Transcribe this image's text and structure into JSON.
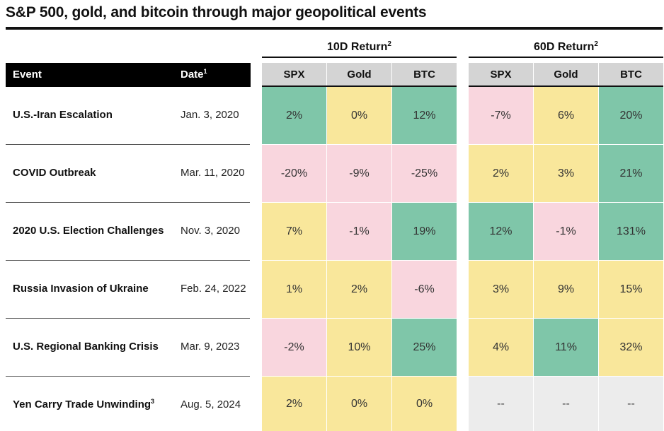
{
  "title": "S&P 500, gold, and bitcoin through major geopolitical events",
  "groups": [
    {
      "label": "10D Return",
      "note": "2"
    },
    {
      "label": "60D Return",
      "note": "2"
    }
  ],
  "header": {
    "event": "Event",
    "date": "Date",
    "date_note": "1"
  },
  "columns": [
    "SPX",
    "Gold",
    "BTC",
    "SPX",
    "Gold",
    "BTC"
  ],
  "colors": {
    "green": "#7fc6a9",
    "yellow": "#f9e79b",
    "pink": "#f9d6de",
    "gray": "#ececec"
  },
  "rows": [
    {
      "event": "U.S.-Iran Escalation",
      "note": "",
      "date": "Jan. 3, 2020",
      "values": [
        "2%",
        "0%",
        "12%",
        "-7%",
        "6%",
        "20%"
      ],
      "colors": [
        "green",
        "yellow",
        "green",
        "pink",
        "yellow",
        "green"
      ]
    },
    {
      "event": "COVID Outbreak",
      "note": "",
      "date": "Mar. 11, 2020",
      "values": [
        "-20%",
        "-9%",
        "-25%",
        "2%",
        "3%",
        "21%"
      ],
      "colors": [
        "pink",
        "pink",
        "pink",
        "yellow",
        "yellow",
        "green"
      ]
    },
    {
      "event": "2020 U.S. Election Challenges",
      "note": "",
      "date": "Nov. 3, 2020",
      "values": [
        "7%",
        "-1%",
        "19%",
        "12%",
        "-1%",
        "131%"
      ],
      "colors": [
        "yellow",
        "pink",
        "green",
        "green",
        "pink",
        "green"
      ]
    },
    {
      "event": "Russia Invasion of Ukraine",
      "note": "",
      "date": "Feb. 24, 2022",
      "values": [
        "1%",
        "2%",
        "-6%",
        "3%",
        "9%",
        "15%"
      ],
      "colors": [
        "yellow",
        "yellow",
        "pink",
        "yellow",
        "yellow",
        "yellow"
      ]
    },
    {
      "event": "U.S. Regional Banking Crisis",
      "note": "",
      "date": "Mar. 9, 2023",
      "values": [
        "-2%",
        "10%",
        "25%",
        "4%",
        "11%",
        "32%"
      ],
      "colors": [
        "pink",
        "yellow",
        "green",
        "yellow",
        "green",
        "yellow"
      ]
    },
    {
      "event": "Yen Carry Trade Unwinding",
      "note": "3",
      "date": "Aug. 5, 2024",
      "values": [
        "2%",
        "0%",
        "0%",
        "--",
        "--",
        "--"
      ],
      "colors": [
        "yellow",
        "yellow",
        "yellow",
        "gray",
        "gray",
        "gray"
      ]
    }
  ]
}
